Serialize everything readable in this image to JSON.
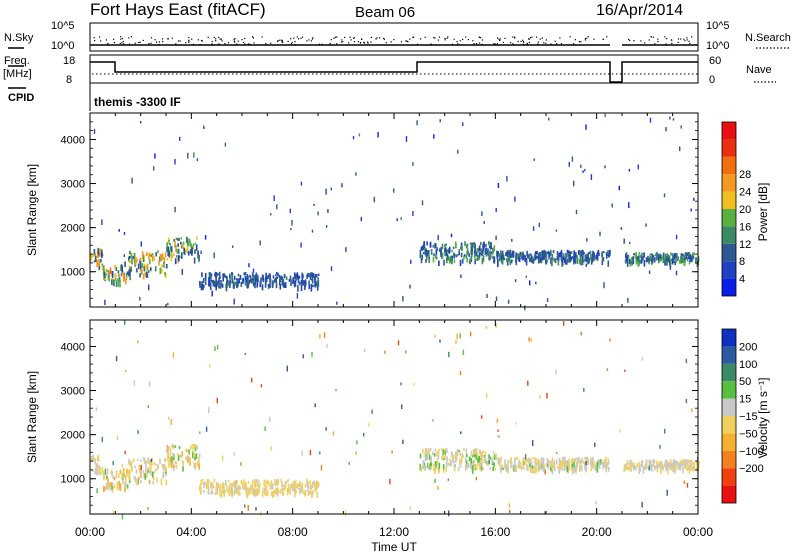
{
  "header": {
    "station": "Fort Hays East (fitACF)",
    "beam": "Beam 06",
    "date": "16/Apr/2014"
  },
  "top_panels": {
    "nsky_label": "N.Sky",
    "nsky_ticks": [
      "10^5",
      "10^0"
    ],
    "nsearch_label": "N.Search",
    "nsearch_ticks": [
      "10^5",
      "10^0"
    ],
    "freq_label": "Freq.",
    "freq_unit": "[MHz]",
    "freq_ticks": [
      "18",
      "8"
    ],
    "nave_label": "Nave",
    "nave_ticks": [
      "60",
      "0"
    ],
    "cpid_label": "CPID",
    "cpid_value": "themis -3300 IF"
  },
  "colors": {
    "power": [
      "#0a1ee8",
      "#2040c0",
      "#2c5a90",
      "#3c8a64",
      "#58b040",
      "#f0c020",
      "#f59a20",
      "#f07010",
      "#e83010",
      "#e81010"
    ],
    "velocity": [
      "#e81010",
      "#f04010",
      "#f58020",
      "#f5b030",
      "#f0d060",
      "#c8c8c8",
      "#58c040",
      "#3c8a64",
      "#2c5aa0",
      "#1030c0"
    ]
  },
  "chart_data": [
    {
      "type": "heatmap",
      "name": "power",
      "ylabel": "Slant Range [km]",
      "ylim": [
        200,
        4600
      ],
      "yticks": [
        "1000",
        "2000",
        "3000",
        "4000"
      ],
      "xlim": [
        0,
        24
      ],
      "colorbar_label": "Power [dB]",
      "colorbar_ticks": [
        "4",
        "8",
        "12",
        "16",
        "20",
        "24",
        "28"
      ],
      "scatter_regions": [
        {
          "t0": 0.0,
          "t1": 0.5,
          "r0": 1150,
          "r1": 1550,
          "v0": 4,
          "v1": 22
        },
        {
          "t0": 0.5,
          "t1": 1.5,
          "r0": 800,
          "r1": 1250,
          "v0": 4,
          "v1": 24
        },
        {
          "t0": 1.5,
          "t1": 3.0,
          "r0": 950,
          "r1": 1500,
          "v0": 4,
          "v1": 22
        },
        {
          "t0": 3.0,
          "t1": 4.3,
          "r0": 1300,
          "r1": 1800,
          "v0": 4,
          "v1": 20
        },
        {
          "t0": 4.3,
          "t1": 9.0,
          "r0": 700,
          "r1": 1000,
          "v0": 4,
          "v1": 10
        },
        {
          "t0": 13.0,
          "t1": 16.0,
          "r0": 1250,
          "r1": 1700,
          "v0": 4,
          "v1": 14
        },
        {
          "t0": 16.0,
          "t1": 20.5,
          "r0": 1250,
          "r1": 1500,
          "v0": 4,
          "v1": 12
        },
        {
          "t0": 21.0,
          "t1": 24.0,
          "r0": 1250,
          "r1": 1450,
          "v0": 4,
          "v1": 16
        }
      ],
      "noise_density": 0.9
    },
    {
      "type": "heatmap",
      "name": "velocity",
      "ylabel": "Slant Range [km]",
      "ylim": [
        200,
        4600
      ],
      "yticks": [
        "1000",
        "2000",
        "3000",
        "4000"
      ],
      "xlabel": "Time UT",
      "xticks": [
        "00:00",
        "04:00",
        "08:00",
        "12:00",
        "16:00",
        "20:00",
        "00:00"
      ],
      "xlim": [
        0,
        24
      ],
      "colorbar_label": "Velocity [m s⁻¹]",
      "colorbar_ticks": [
        "200",
        "100",
        "50",
        "15",
        "−15",
        "−50",
        "−100",
        "−200"
      ],
      "scatter_regions": [
        {
          "t0": 0.0,
          "t1": 0.5,
          "r0": 1150,
          "r1": 1550,
          "v0": -60,
          "v1": 30
        },
        {
          "t0": 0.5,
          "t1": 1.5,
          "r0": 800,
          "r1": 1250,
          "v0": -80,
          "v1": 60
        },
        {
          "t0": 1.5,
          "t1": 3.0,
          "r0": 950,
          "r1": 1500,
          "v0": -60,
          "v1": 60
        },
        {
          "t0": 3.0,
          "t1": 4.3,
          "r0": 1300,
          "r1": 1800,
          "v0": -100,
          "v1": 80
        },
        {
          "t0": 4.3,
          "t1": 9.0,
          "r0": 700,
          "r1": 1000,
          "v0": -30,
          "v1": 10
        },
        {
          "t0": 13.0,
          "t1": 16.0,
          "r0": 1250,
          "r1": 1700,
          "v0": -50,
          "v1": 80
        },
        {
          "t0": 16.0,
          "t1": 20.5,
          "r0": 1250,
          "r1": 1500,
          "v0": -40,
          "v1": 60
        },
        {
          "t0": 21.0,
          "t1": 24.0,
          "r0": 1250,
          "r1": 1450,
          "v0": -40,
          "v1": 40
        }
      ],
      "noise_density": 0.9
    }
  ]
}
